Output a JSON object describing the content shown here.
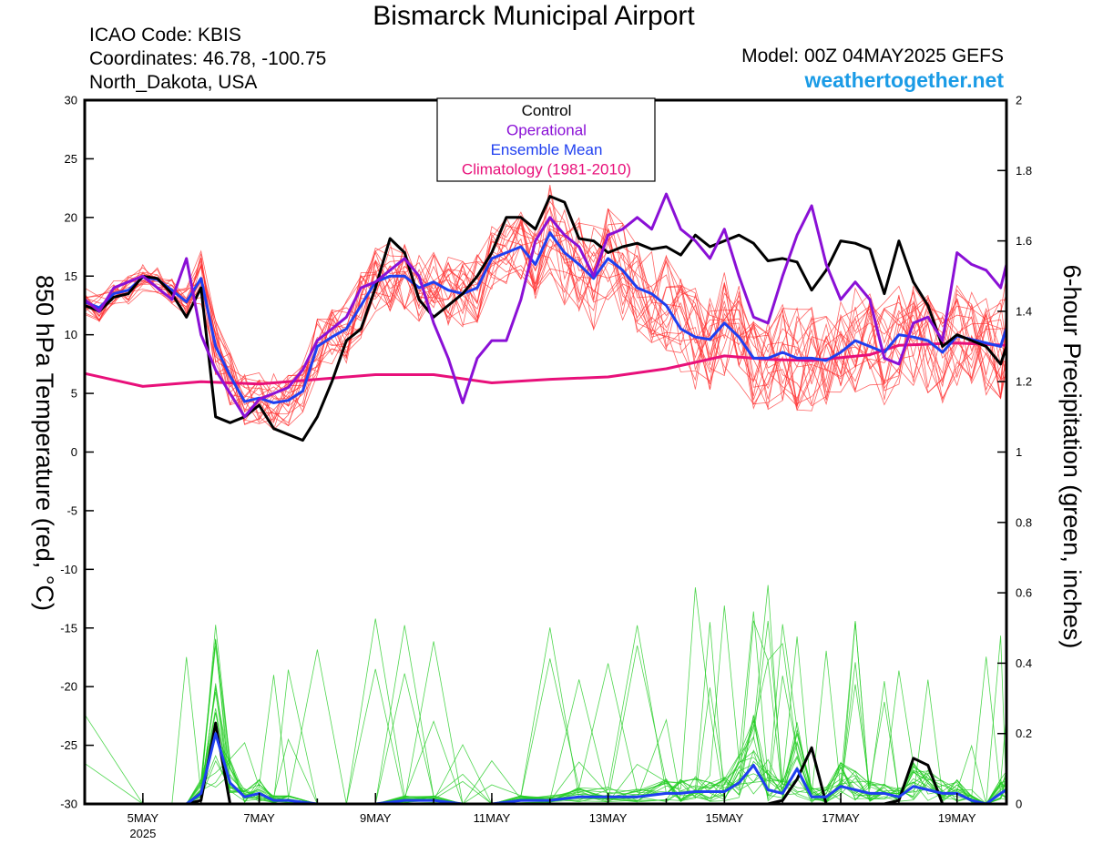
{
  "header": {
    "title": "Bismarck Municipal Airport",
    "icao": "ICAO Code: KBIS",
    "coords": "Coordinates: 46.78, -100.75",
    "region": "North_Dakota, USA",
    "model": "Model: 00Z 04MAY2025 GEFS",
    "site": "weathertogether.net"
  },
  "chart_data": {
    "type": "line",
    "x_axis": {
      "range_days_may": [
        4.0,
        19.85
      ],
      "tick_labels": [
        "5MAY",
        "7MAY",
        "9MAY",
        "11MAY",
        "13MAY",
        "15MAY",
        "17MAY",
        "19MAY"
      ],
      "tick_days": [
        5,
        7,
        9,
        11,
        13,
        15,
        17,
        19
      ],
      "sublabel": "2025"
    },
    "y_left": {
      "label": "850 hPa Temperature (red, °C)",
      "ylim": [
        -30,
        30
      ],
      "ticks": [
        -30,
        -25,
        -20,
        -15,
        -10,
        -5,
        0,
        5,
        10,
        15,
        20,
        25,
        30
      ]
    },
    "y_right": {
      "label": "6-hour Precipitation (green, inches)",
      "ylim": [
        0,
        2
      ],
      "ticks": [
        "0",
        "0.2",
        "0.4",
        "0.6",
        "0.8",
        "1",
        "1.2",
        "1.4",
        "1.6",
        "1.8",
        "2"
      ]
    },
    "legend": {
      "placement": "top-center",
      "entries": [
        {
          "label": "Control",
          "color": "#000000"
        },
        {
          "label": "Operational",
          "color": "#8a10d6"
        },
        {
          "label": "Ensemble Mean",
          "color": "#1f3ff0"
        },
        {
          "label": "Climatology (1981-2010)",
          "color": "#e8107a"
        }
      ]
    },
    "member_colors": {
      "temperature": "#ff3030",
      "precipitation": "#22cc22"
    },
    "temperature_series": [
      {
        "name": "Control",
        "color": "#000000",
        "x": [
          4.0,
          4.25,
          4.5,
          4.75,
          5.0,
          5.25,
          5.5,
          5.75,
          6.0,
          6.25,
          6.5,
          6.75,
          7.0,
          7.25,
          7.5,
          7.75,
          8.0,
          8.25,
          8.5,
          8.75,
          9.0,
          9.25,
          9.5,
          9.75,
          10.0,
          10.25,
          10.5,
          10.75,
          11.0,
          11.25,
          11.5,
          11.75,
          12.0,
          12.25,
          12.5,
          12.75,
          13.0,
          13.25,
          13.5,
          13.75,
          14.0,
          14.25,
          14.5,
          14.75,
          15.0,
          15.25,
          15.5,
          15.75,
          16.0,
          16.25,
          16.5,
          16.75,
          17.0,
          17.25,
          17.5,
          17.75,
          18.0,
          18.25,
          18.5,
          18.75,
          19.0,
          19.25,
          19.5,
          19.75,
          19.85
        ],
        "y": [
          12.5,
          12.0,
          13.2,
          13.5,
          15.0,
          14.8,
          13.5,
          11.5,
          14.0,
          3.0,
          2.5,
          3.0,
          4.0,
          2.0,
          1.5,
          1.0,
          3.0,
          6.0,
          9.5,
          10.5,
          14.0,
          18.2,
          17.0,
          13.0,
          11.5,
          12.5,
          13.5,
          15.0,
          17.0,
          20.0,
          20.0,
          19.0,
          21.8,
          21.3,
          18.2,
          18.0,
          17.0,
          17.5,
          17.8,
          17.3,
          17.5,
          16.8,
          18.5,
          17.5,
          18.0,
          18.5,
          17.8,
          16.3,
          16.5,
          16.2,
          13.8,
          15.5,
          18.0,
          17.8,
          17.3,
          13.5,
          18.0,
          14.5,
          12.5,
          9.0,
          10.0,
          9.5,
          9.0,
          7.5,
          9.0
        ]
      },
      {
        "name": "Operational",
        "color": "#8a10d6",
        "x": [
          4.0,
          4.25,
          4.5,
          4.75,
          5.0,
          5.25,
          5.5,
          5.75,
          6.0,
          6.25,
          6.5,
          6.75,
          7.0,
          7.25,
          7.5,
          7.75,
          8.0,
          8.25,
          8.5,
          8.75,
          9.0,
          9.25,
          9.5,
          9.75,
          10.0,
          10.25,
          10.5,
          10.75,
          11.0,
          11.25,
          11.5,
          11.75,
          12.0,
          12.25,
          12.5,
          12.75,
          13.0,
          13.25,
          13.5,
          13.75,
          14.0,
          14.25,
          14.5,
          14.75,
          15.0,
          15.25,
          15.5,
          15.75,
          16.0,
          16.25,
          16.5,
          16.75,
          17.0,
          17.25,
          17.5,
          17.75,
          18.0,
          18.25,
          18.5,
          18.75,
          19.0,
          19.25,
          19.5,
          19.75,
          19.85
        ],
        "y": [
          13.0,
          12.0,
          14.0,
          14.5,
          15.0,
          14.0,
          13.0,
          16.5,
          10.0,
          7.0,
          5.0,
          3.0,
          4.5,
          5.0,
          5.5,
          7.0,
          9.5,
          10.5,
          11.5,
          14.0,
          14.5,
          15.5,
          16.5,
          15.0,
          11.0,
          8.0,
          4.2,
          8.0,
          9.5,
          9.5,
          13.0,
          18.0,
          20.0,
          18.5,
          17.5,
          15.0,
          18.5,
          19.0,
          20.0,
          19.0,
          22.0,
          19.0,
          18.0,
          16.5,
          19.0,
          15.0,
          11.5,
          11.0,
          15.0,
          18.5,
          21.0,
          16.0,
          13.0,
          14.5,
          13.0,
          8.0,
          7.5,
          11.0,
          11.5,
          9.5,
          17.0,
          16.0,
          15.5,
          14.0,
          16.0
        ]
      },
      {
        "name": "Ensemble Mean",
        "color": "#1f3ff0",
        "x": [
          4.0,
          4.25,
          4.5,
          4.75,
          5.0,
          5.25,
          5.5,
          5.75,
          6.0,
          6.25,
          6.5,
          6.75,
          7.0,
          7.25,
          7.5,
          7.75,
          8.0,
          8.25,
          8.5,
          8.75,
          9.0,
          9.25,
          9.5,
          9.75,
          10.0,
          10.25,
          10.5,
          10.75,
          11.0,
          11.25,
          11.5,
          11.75,
          12.0,
          12.25,
          12.5,
          12.75,
          13.0,
          13.25,
          13.5,
          13.75,
          14.0,
          14.25,
          14.5,
          14.75,
          15.0,
          15.25,
          15.5,
          15.75,
          16.0,
          16.25,
          16.5,
          16.75,
          17.0,
          17.25,
          17.5,
          17.75,
          18.0,
          18.25,
          18.5,
          18.75,
          19.0,
          19.25,
          19.5,
          19.75,
          19.85
        ],
        "y": [
          12.8,
          12.3,
          13.5,
          13.8,
          14.9,
          14.7,
          13.8,
          12.8,
          14.8,
          9.0,
          6.5,
          4.3,
          4.6,
          4.2,
          4.4,
          5.2,
          9.0,
          9.8,
          10.5,
          12.5,
          14.5,
          15.0,
          15.0,
          14.0,
          14.5,
          13.8,
          13.5,
          14.0,
          16.5,
          17.0,
          17.5,
          16.0,
          18.7,
          17.0,
          16.0,
          14.8,
          16.5,
          15.5,
          14.0,
          13.5,
          12.5,
          10.5,
          9.8,
          9.6,
          11.0,
          9.8,
          8.0,
          8.0,
          8.5,
          8.0,
          8.0,
          7.8,
          8.5,
          9.5,
          9.0,
          8.5,
          10.0,
          9.8,
          9.5,
          8.5,
          9.9,
          9.6,
          9.3,
          9.0,
          10.6
        ]
      },
      {
        "name": "Climatology (1981-2010)",
        "color": "#e8107a",
        "x": [
          4.0,
          5.0,
          6.0,
          7.0,
          8.0,
          9.0,
          10.0,
          11.0,
          12.0,
          13.0,
          14.0,
          15.0,
          15.75,
          16.5,
          17.5,
          18.0,
          19.0,
          19.85
        ],
        "y": [
          6.7,
          5.6,
          6.0,
          5.8,
          6.2,
          6.6,
          6.6,
          5.9,
          6.2,
          6.4,
          7.1,
          8.2,
          7.9,
          7.8,
          8.3,
          9.1,
          9.3,
          9.1
        ]
      }
    ],
    "precipitation_series": [
      {
        "name": "Control",
        "color": "#000000",
        "x": [
          4.0,
          5.75,
          6.0,
          6.25,
          6.5,
          6.75
        ],
        "y": [
          0,
          0,
          0.01,
          0.23,
          0.0,
          0.0
        ],
        "x2": [
          15.75,
          16.0,
          16.25,
          16.5,
          16.75,
          17.0,
          17.25,
          17.5,
          17.75,
          18.0,
          18.25,
          18.5,
          18.75,
          19.0
        ],
        "y2": [
          0,
          0.01,
          0.07,
          0.16,
          0.0,
          0.0,
          0.0,
          0.0,
          0.0,
          0.01,
          0.13,
          0.11,
          0.0,
          0.0
        ]
      },
      {
        "name": "Ensemble Mean",
        "color": "#1f3ff0",
        "x": [
          4.0,
          5.0,
          5.5,
          5.75,
          6.0,
          6.25,
          6.5,
          6.75,
          7.0,
          7.25,
          7.5,
          8.0,
          8.5,
          9.0,
          9.5,
          10.0,
          10.5,
          11.0,
          11.5,
          12.0,
          12.5,
          13.0,
          13.5,
          14.0,
          14.25,
          14.5,
          14.75,
          15.0,
          15.25,
          15.5,
          15.75,
          16.0,
          16.25,
          16.5,
          16.75,
          17.0,
          17.25,
          17.5,
          17.75,
          18.0,
          18.25,
          18.5,
          18.75,
          19.0,
          19.25,
          19.5,
          19.75,
          19.85
        ],
        "y": [
          0,
          0,
          0,
          0,
          0.03,
          0.2,
          0.06,
          0.02,
          0.03,
          0.01,
          0.01,
          0,
          0,
          0,
          0.01,
          0.01,
          0,
          0,
          0.01,
          0.01,
          0.02,
          0.02,
          0.02,
          0.03,
          0.03,
          0.035,
          0.035,
          0.035,
          0.06,
          0.11,
          0.04,
          0.03,
          0.1,
          0.02,
          0.02,
          0.05,
          0.04,
          0.03,
          0.03,
          0.02,
          0.05,
          0.04,
          0.03,
          0.03,
          0.01,
          0.0,
          0.03,
          0.04
        ]
      }
    ]
  }
}
